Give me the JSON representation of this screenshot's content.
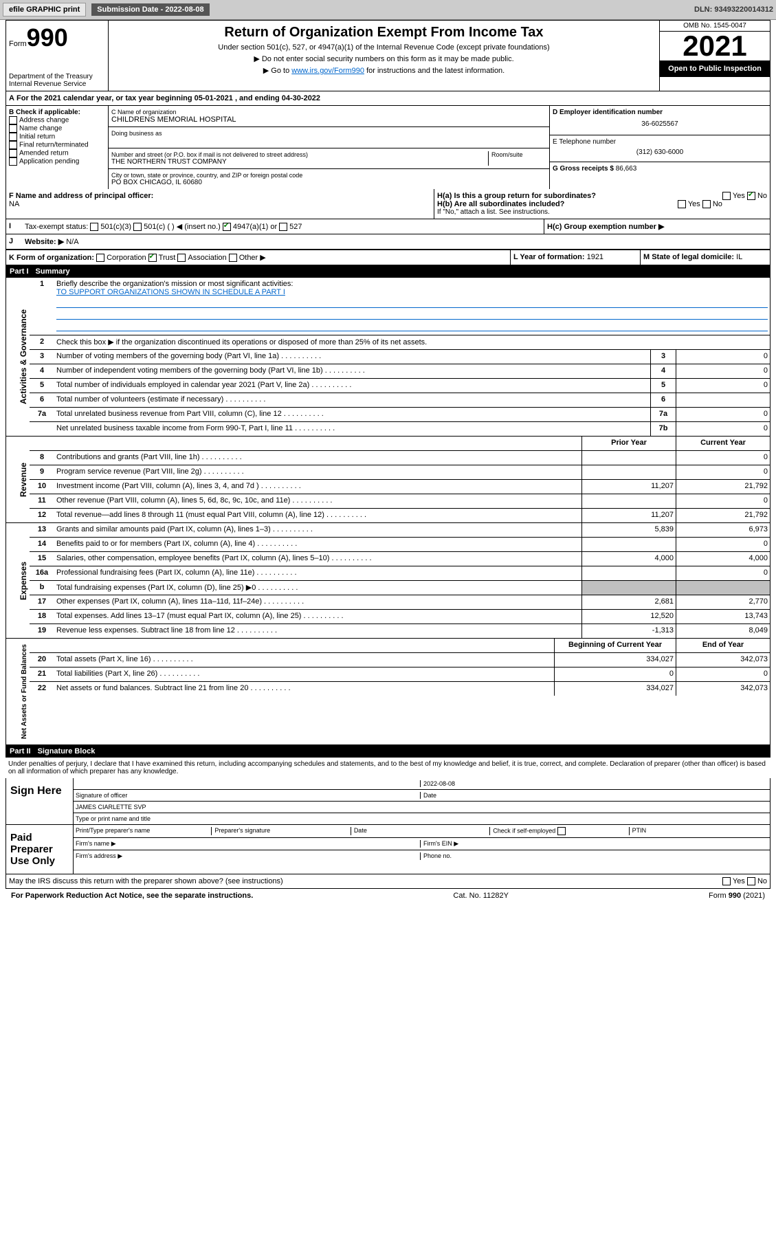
{
  "toolbar": {
    "efile": "efile GRAPHIC print",
    "submission_label": "Submission Date - 2022-08-08",
    "dln": "DLN: 93493220014312"
  },
  "header": {
    "form_label": "Form",
    "form_number": "990",
    "dept1": "Department of the Treasury",
    "dept2": "Internal Revenue Service",
    "title": "Return of Organization Exempt From Income Tax",
    "sub1": "Under section 501(c), 527, or 4947(a)(1) of the Internal Revenue Code (except private foundations)",
    "sub2": "▶ Do not enter social security numbers on this form as it may be made public.",
    "sub3_pre": "▶ Go to ",
    "sub3_link": "www.irs.gov/Form990",
    "sub3_post": " for instructions and the latest information.",
    "omb": "OMB No. 1545-0047",
    "year": "2021",
    "open": "Open to Public Inspection"
  },
  "period": {
    "line_a": "For the 2021 calendar year, or tax year beginning 05-01-2021  , and ending 04-30-2022"
  },
  "boxB": {
    "heading": "B Check if applicable:",
    "items": [
      "Address change",
      "Name change",
      "Initial return",
      "Final return/terminated",
      "Amended return",
      "Application pending"
    ]
  },
  "boxC": {
    "name_label": "C Name of organization",
    "name": "CHILDRENS MEMORIAL HOSPITAL",
    "dba_label": "Doing business as",
    "street_label": "Number and street (or P.O. box if mail is not delivered to street address)",
    "room_label": "Room/suite",
    "street": "THE NORTHERN TRUST COMPANY",
    "city_label": "City or town, state or province, country, and ZIP or foreign postal code",
    "city": "PO BOX CHICAGO, IL  60680"
  },
  "boxD": {
    "label": "D Employer identification number",
    "ein": "36-6025567"
  },
  "boxE": {
    "label": "E Telephone number",
    "phone": "(312) 630-6000"
  },
  "boxG": {
    "label": "G Gross receipts $",
    "amount": "86,663"
  },
  "boxF": {
    "label": "F  Name and address of principal officer:",
    "value": "NA"
  },
  "boxH": {
    "ha": "H(a)  Is this a group return for subordinates?",
    "hb": "H(b)  Are all subordinates included?",
    "hb_note": "If \"No,\" attach a list. See instructions.",
    "hc": "H(c)  Group exemption number ▶",
    "yes": "Yes",
    "no": "No"
  },
  "boxI": {
    "label": "Tax-exempt status:",
    "opts": [
      "501(c)(3)",
      "501(c) (  ) ◀ (insert no.)",
      "4947(a)(1) or",
      "527"
    ]
  },
  "boxJ": {
    "label": "Website: ▶",
    "val": "N/A"
  },
  "boxK": {
    "label": "K Form of organization:",
    "opts": [
      "Corporation",
      "Trust",
      "Association",
      "Other ▶"
    ]
  },
  "boxL": {
    "label": "L Year of formation:",
    "val": "1921"
  },
  "boxM": {
    "label": "M State of legal domicile:",
    "val": "IL"
  },
  "part1": {
    "header": "Part I",
    "title": "Summary",
    "q1_label": "Briefly describe the organization's mission or most significant activities:",
    "q1_mission": "TO SUPPORT ORGANIZATIONS SHOWN IN SCHEDULE A PART I",
    "q2": "Check this box ▶     if the organization discontinued its operations or disposed of more than 25% of its net assets.",
    "rows_gov": [
      {
        "n": "3",
        "t": "Number of voting members of the governing body (Part VI, line 1a)",
        "box": "3",
        "v": "0"
      },
      {
        "n": "4",
        "t": "Number of independent voting members of the governing body (Part VI, line 1b)",
        "box": "4",
        "v": "0"
      },
      {
        "n": "5",
        "t": "Total number of individuals employed in calendar year 2021 (Part V, line 2a)",
        "box": "5",
        "v": "0"
      },
      {
        "n": "6",
        "t": "Total number of volunteers (estimate if necessary)",
        "box": "6",
        "v": ""
      },
      {
        "n": "7a",
        "t": "Total unrelated business revenue from Part VIII, column (C), line 12",
        "box": "7a",
        "v": "0"
      },
      {
        "n": "",
        "t": "Net unrelated business taxable income from Form 990-T, Part I, line 11",
        "box": "7b",
        "v": "0"
      }
    ],
    "col_headers": {
      "prior": "Prior Year",
      "current": "Current Year"
    },
    "rows_rev": [
      {
        "n": "8",
        "t": "Contributions and grants (Part VIII, line 1h)",
        "p": "",
        "c": "0"
      },
      {
        "n": "9",
        "t": "Program service revenue (Part VIII, line 2g)",
        "p": "",
        "c": "0"
      },
      {
        "n": "10",
        "t": "Investment income (Part VIII, column (A), lines 3, 4, and 7d )",
        "p": "11,207",
        "c": "21,792"
      },
      {
        "n": "11",
        "t": "Other revenue (Part VIII, column (A), lines 5, 6d, 8c, 9c, 10c, and 11e)",
        "p": "",
        "c": "0"
      },
      {
        "n": "12",
        "t": "Total revenue—add lines 8 through 11 (must equal Part VIII, column (A), line 12)",
        "p": "11,207",
        "c": "21,792"
      }
    ],
    "rows_exp": [
      {
        "n": "13",
        "t": "Grants and similar amounts paid (Part IX, column (A), lines 1–3)",
        "p": "5,839",
        "c": "6,973"
      },
      {
        "n": "14",
        "t": "Benefits paid to or for members (Part IX, column (A), line 4)",
        "p": "",
        "c": "0"
      },
      {
        "n": "15",
        "t": "Salaries, other compensation, employee benefits (Part IX, column (A), lines 5–10)",
        "p": "4,000",
        "c": "4,000"
      },
      {
        "n": "16a",
        "t": "Professional fundraising fees (Part IX, column (A), line 11e)",
        "p": "",
        "c": "0"
      },
      {
        "n": "b",
        "t": "Total fundraising expenses (Part IX, column (D), line 25) ▶0",
        "p": "GRAY",
        "c": "GRAY"
      },
      {
        "n": "17",
        "t": "Other expenses (Part IX, column (A), lines 11a–11d, 11f–24e)",
        "p": "2,681",
        "c": "2,770"
      },
      {
        "n": "18",
        "t": "Total expenses. Add lines 13–17 (must equal Part IX, column (A), line 25)",
        "p": "12,520",
        "c": "13,743"
      },
      {
        "n": "19",
        "t": "Revenue less expenses. Subtract line 18 from line 12",
        "p": "-1,313",
        "c": "8,049"
      }
    ],
    "col_headers2": {
      "begin": "Beginning of Current Year",
      "end": "End of Year"
    },
    "rows_net": [
      {
        "n": "20",
        "t": "Total assets (Part X, line 16)",
        "p": "334,027",
        "c": "342,073"
      },
      {
        "n": "21",
        "t": "Total liabilities (Part X, line 26)",
        "p": "0",
        "c": "0"
      },
      {
        "n": "22",
        "t": "Net assets or fund balances. Subtract line 21 from line 20",
        "p": "334,027",
        "c": "342,073"
      }
    ],
    "vlabels": {
      "gov": "Activities & Governance",
      "rev": "Revenue",
      "exp": "Expenses",
      "net": "Net Assets or Fund Balances"
    }
  },
  "part2": {
    "header": "Part II",
    "title": "Signature Block",
    "penalty": "Under penalties of perjury, I declare that I have examined this return, including accompanying schedules and statements, and to the best of my knowledge and belief, it is true, correct, and complete. Declaration of preparer (other than officer) is based on all information of which preparer has any knowledge.",
    "sign_here": "Sign Here",
    "sig_officer": "Signature of officer",
    "sig_date": "2022-08-08",
    "date_label": "Date",
    "officer_name": "JAMES CIARLETTE  SVP",
    "name_title_label": "Type or print name and title",
    "paid": "Paid Preparer Use Only",
    "prep_name": "Print/Type preparer's name",
    "prep_sig": "Preparer's signature",
    "check_self": "Check       if self-employed",
    "ptin": "PTIN",
    "firm_name": "Firm's name   ▶",
    "firm_ein": "Firm's EIN ▶",
    "firm_addr": "Firm's address ▶",
    "phone": "Phone no.",
    "may_irs": "May the IRS discuss this return with the preparer shown above? (see instructions)"
  },
  "footer": {
    "pra": "For Paperwork Reduction Act Notice, see the separate instructions.",
    "cat": "Cat. No. 11282Y",
    "form": "Form 990 (2021)"
  }
}
